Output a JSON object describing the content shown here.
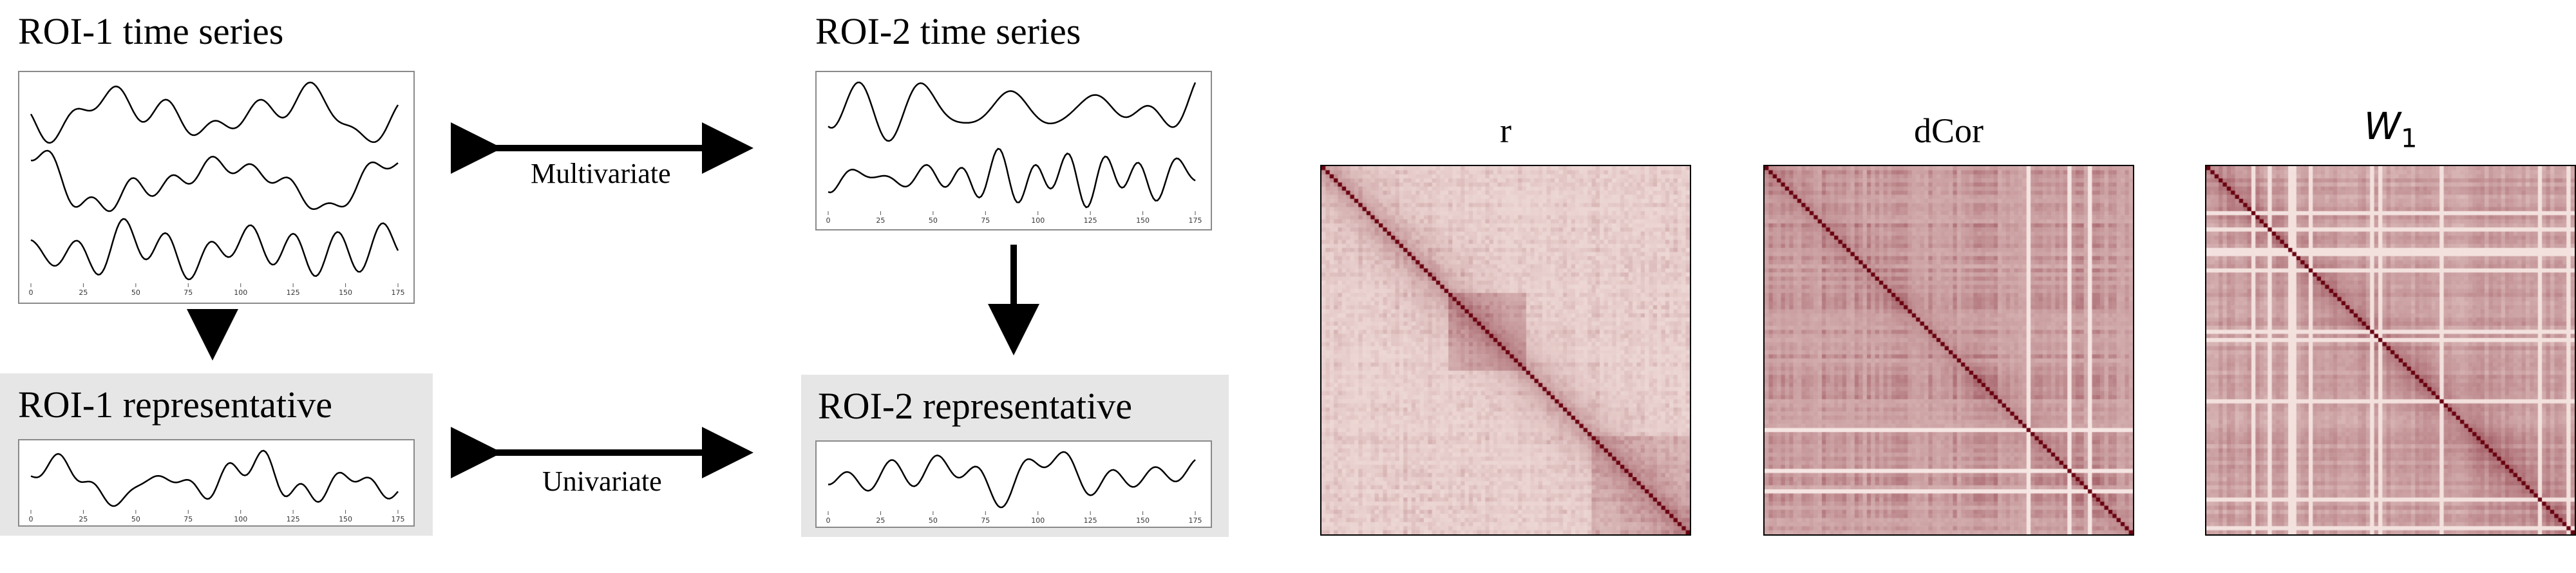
{
  "roi1": {
    "title": "ROI-1 time series",
    "rep_title": "ROI-1 representative"
  },
  "roi2": {
    "title": "ROI-2 time series",
    "rep_title": "ROI-2 representative"
  },
  "arrows": {
    "multivariate": "Multivariate",
    "univariate": "Univariate"
  },
  "axis_ticks": [
    "0",
    "25",
    "50",
    "75",
    "100",
    "125",
    "150",
    "175"
  ],
  "matrices": [
    {
      "title": "r",
      "accent": "#c62a1e"
    },
    {
      "title": "dCor",
      "accent": "#c62a1e"
    },
    {
      "title": "W",
      "subscript": "1",
      "accent": "#c62a1e"
    }
  ],
  "colors": {
    "line": "#000000",
    "panel_border": "#8a8a8a",
    "rep_bg": "#e6e6e6"
  }
}
